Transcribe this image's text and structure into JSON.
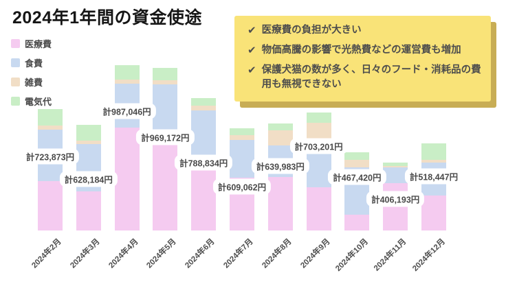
{
  "title": "2024年1年間の資金使途",
  "callout": {
    "check_glyph": "✔",
    "background": "#f9e378",
    "shadow": "#c8ad55",
    "items": [
      {
        "text": "医療費の負担が大きい"
      },
      {
        "text": "物価高騰の影響で光熱費などの運営費も増加"
      },
      {
        "text": "保護犬猫の数が多く、日々のフード・消耗品の費用も無視できない"
      }
    ]
  },
  "chart_data": {
    "type": "bar",
    "stacked": true,
    "grid": false,
    "legend_position": "top-left",
    "ylim": [
      0,
      1000000
    ],
    "unit": "円",
    "total_prefix": "計",
    "categories": [
      "2024年2月",
      "2024年3月",
      "2024年4月",
      "2024年5月",
      "2024年6月",
      "2024年7月",
      "2024年8月",
      "2024年9月",
      "2024年10月",
      "2024年11月",
      "2024年12月"
    ],
    "series": [
      {
        "name": "医療費",
        "key": "medical-expenses",
        "color": "#f5cbf0",
        "values": [
          294873,
          231184,
          612046,
          514172,
          443834,
          314062,
          317983,
          256201,
          93420,
          284193,
          210447
        ]
      },
      {
        "name": "食費",
        "key": "food-expenses",
        "color": "#c8d9f0",
        "values": [
          306000,
          283000,
          264000,
          356000,
          274000,
          225000,
          188000,
          277000,
          284000,
          94000,
          194000
        ]
      },
      {
        "name": "雑費",
        "key": "miscellaneous-expenses",
        "color": "#f1dec6",
        "values": [
          25000,
          21000,
          25000,
          25000,
          25000,
          29000,
          93000,
          108000,
          45000,
          8000,
          16000
        ]
      },
      {
        "name": "電気代",
        "key": "electricity-cost",
        "color": "#c9eec6",
        "values": [
          98000,
          93000,
          86000,
          74000,
          46000,
          41000,
          41000,
          62000,
          45000,
          20000,
          98000
        ]
      }
    ],
    "totals": [
      723873,
      628184,
      987046,
      969172,
      788834,
      609062,
      639983,
      703201,
      467420,
      406193,
      518447
    ],
    "total_labels": [
      "計723,873円",
      "計628,184円",
      "計987,046円",
      "計969,172円",
      "計788,834円",
      "計609,062円",
      "計639,983円",
      "計703,201円",
      "計467,420円",
      "計406,193円",
      "計518,447円"
    ],
    "label_y": [
      228,
      261,
      162,
      200,
      237,
      272,
      242,
      213,
      258,
      290,
      257
    ]
  }
}
